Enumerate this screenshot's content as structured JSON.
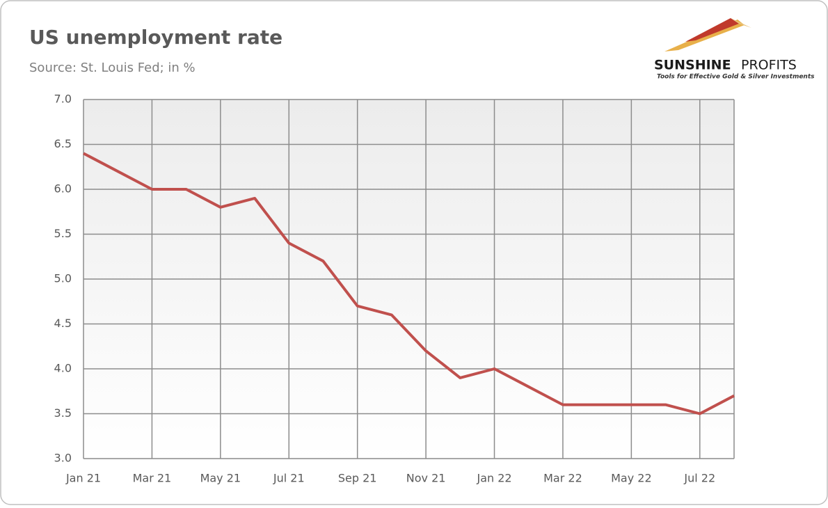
{
  "chart_data": {
    "type": "line",
    "title": "US unemployment rate",
    "subtitle": "Source: St. Louis Fed; in %",
    "categories": [
      "Jan 21",
      null,
      "Mar 21",
      null,
      "May 21",
      null,
      "Jul 21",
      null,
      "Sep 21",
      null,
      "Nov 21",
      null,
      "Jan 22",
      null,
      "Mar 22",
      null,
      "May 22",
      null,
      "Jul 22",
      null
    ],
    "series": [
      {
        "name": "US unemployment rate",
        "color": "#c0504d",
        "values": [
          6.4,
          6.2,
          6.0,
          6.0,
          5.8,
          5.9,
          5.4,
          5.2,
          4.7,
          4.6,
          4.2,
          3.9,
          4.0,
          3.8,
          3.6,
          3.6,
          3.6,
          3.6,
          3.5,
          3.7
        ]
      }
    ],
    "ylim": [
      3,
      7
    ],
    "yticks": [
      {
        "value": 3,
        "label": "3.0"
      },
      {
        "value": 3.5,
        "label": "3.5"
      },
      {
        "value": 4,
        "label": "4.0"
      },
      {
        "value": 4.5,
        "label": "4.5"
      },
      {
        "value": 5,
        "label": "5.0"
      },
      {
        "value": 5.5,
        "label": "5.5"
      },
      {
        "value": 6,
        "label": "6.0"
      },
      {
        "value": 6.5,
        "label": "6.5"
      },
      {
        "value": 7,
        "label": "7.0"
      }
    ],
    "grid": true
  },
  "logo": {
    "brand_bold": "SUNSHINE",
    "brand_light": "PROFITS",
    "tagline": "Tools for Effective Gold & Silver Investments"
  }
}
